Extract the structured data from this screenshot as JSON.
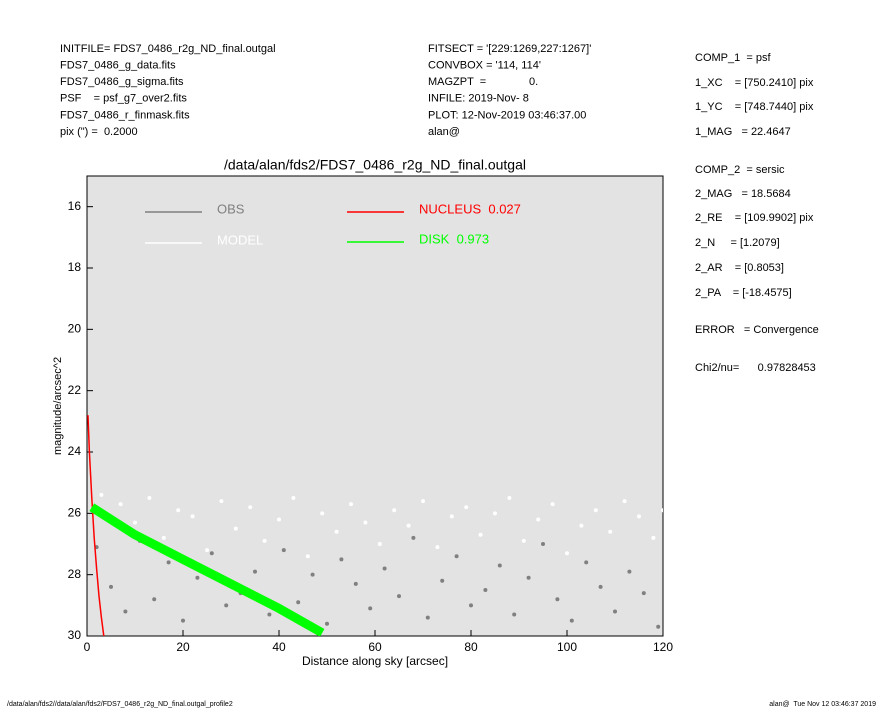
{
  "header": {
    "left": [
      "INITFILE= FDS7_0486_r2g_ND_final.outgal",
      "FDS7_0486_g_data.fits",
      "FDS7_0486_g_sigma.fits",
      "PSF    = psf_g7_over2.fits",
      "FDS7_0486_r_finmask.fits",
      "pix (\") =  0.2000"
    ],
    "middle": [
      "FITSECT = '[229:1269,227:1267]'",
      "CONVBOX = '114, 114'",
      "MAGZPT  =              0.",
      "INFILE: 2019-Nov- 8",
      "PLOT: 12-Nov-2019 03:46:37.00",
      "alan@"
    ]
  },
  "side": [
    "COMP_1  = psf",
    "1_XC    = [750.2410] pix",
    "1_YC    = [748.7440] pix",
    "1_MAG   = 22.4647",
    "COMP_2  = sersic",
    "2_MAG   = 18.5684",
    "2_RE    = [109.9902] pix",
    "2_N     = [1.2079]",
    "2_AR    = [0.8053]",
    "2_PA    = [-18.4575]",
    "ERROR   = Convergence",
    "Chi2/nu=      0.97828453"
  ],
  "footer": {
    "left": "/data/alan/fds2//data/alan/fds2/FDS7_0486_r2g_ND_final.outgal_profile2",
    "right": "alan@  Tue Nov 12 03:46:37 2019"
  },
  "chart_data": {
    "type": "scatter",
    "title": "/data/alan/fds2/FDS7_0486_r2g_ND_final.outgal",
    "xlabel": "Distance along sky [arcsec]",
    "ylabel": "magnitude/arcsec^2",
    "xlim": [
      0,
      120
    ],
    "ylim": [
      30,
      15
    ],
    "xticks": [
      0,
      20,
      40,
      60,
      80,
      100,
      120
    ],
    "yticks": [
      16,
      18,
      20,
      22,
      24,
      26,
      28,
      30
    ],
    "series": [
      {
        "name": "OBS",
        "color": "#808080",
        "mode": "markers",
        "x": [
          2,
          5,
          8,
          11,
          14,
          17,
          20,
          23,
          26,
          29,
          32,
          35,
          38,
          41,
          44,
          47,
          50,
          53,
          56,
          59,
          62,
          65,
          68,
          71,
          74,
          77,
          80,
          83,
          86,
          89,
          92,
          95,
          98,
          101,
          104,
          107,
          110,
          113,
          116,
          119
        ],
        "values": [
          27.1,
          28.4,
          29.2,
          26.9,
          28.8,
          27.6,
          29.5,
          28.1,
          27.3,
          29.0,
          28.6,
          27.9,
          29.3,
          27.2,
          28.9,
          28.0,
          29.6,
          27.5,
          28.3,
          29.1,
          27.8,
          28.7,
          26.8,
          29.4,
          28.2,
          27.4,
          29.0,
          28.5,
          27.7,
          29.3,
          28.1,
          27.0,
          28.8,
          29.5,
          27.6,
          28.4,
          29.2,
          27.9,
          28.6,
          29.7
        ]
      },
      {
        "name": "MODEL",
        "color": "#ffffff",
        "mode": "markers",
        "x": [
          3,
          7,
          10,
          13,
          16,
          19,
          22,
          25,
          28,
          31,
          34,
          37,
          40,
          43,
          46,
          49,
          52,
          55,
          58,
          61,
          64,
          67,
          70,
          73,
          76,
          79,
          82,
          85,
          88,
          91,
          94,
          97,
          100,
          103,
          106,
          109,
          112,
          115,
          118,
          120
        ],
        "values": [
          25.4,
          25.7,
          26.3,
          25.5,
          26.8,
          25.9,
          26.1,
          27.2,
          25.6,
          26.5,
          25.8,
          26.9,
          26.2,
          25.5,
          27.4,
          26.0,
          26.6,
          25.7,
          26.3,
          27.0,
          25.9,
          26.4,
          25.6,
          27.1,
          26.1,
          25.8,
          26.7,
          26.0,
          25.5,
          26.9,
          26.2,
          25.7,
          27.3,
          26.4,
          25.9,
          26.6,
          25.6,
          26.1,
          26.8,
          25.9
        ]
      },
      {
        "name": "NUCLEUS  0.027",
        "color": "#ff0000",
        "mode": "lines",
        "x": [
          0.2,
          0.5,
          1,
          1.5,
          2,
          2.5,
          3,
          3.5
        ],
        "values": [
          22.8,
          24,
          25.5,
          26.8,
          27.8,
          28.7,
          29.4,
          30
        ]
      },
      {
        "name": "DISK  0.973",
        "color": "#00ff00",
        "mode": "band",
        "x": [
          1,
          10,
          20,
          30,
          40,
          49
        ],
        "values": [
          25.8,
          26.7,
          27.5,
          28.3,
          29.1,
          29.9
        ]
      }
    ]
  }
}
